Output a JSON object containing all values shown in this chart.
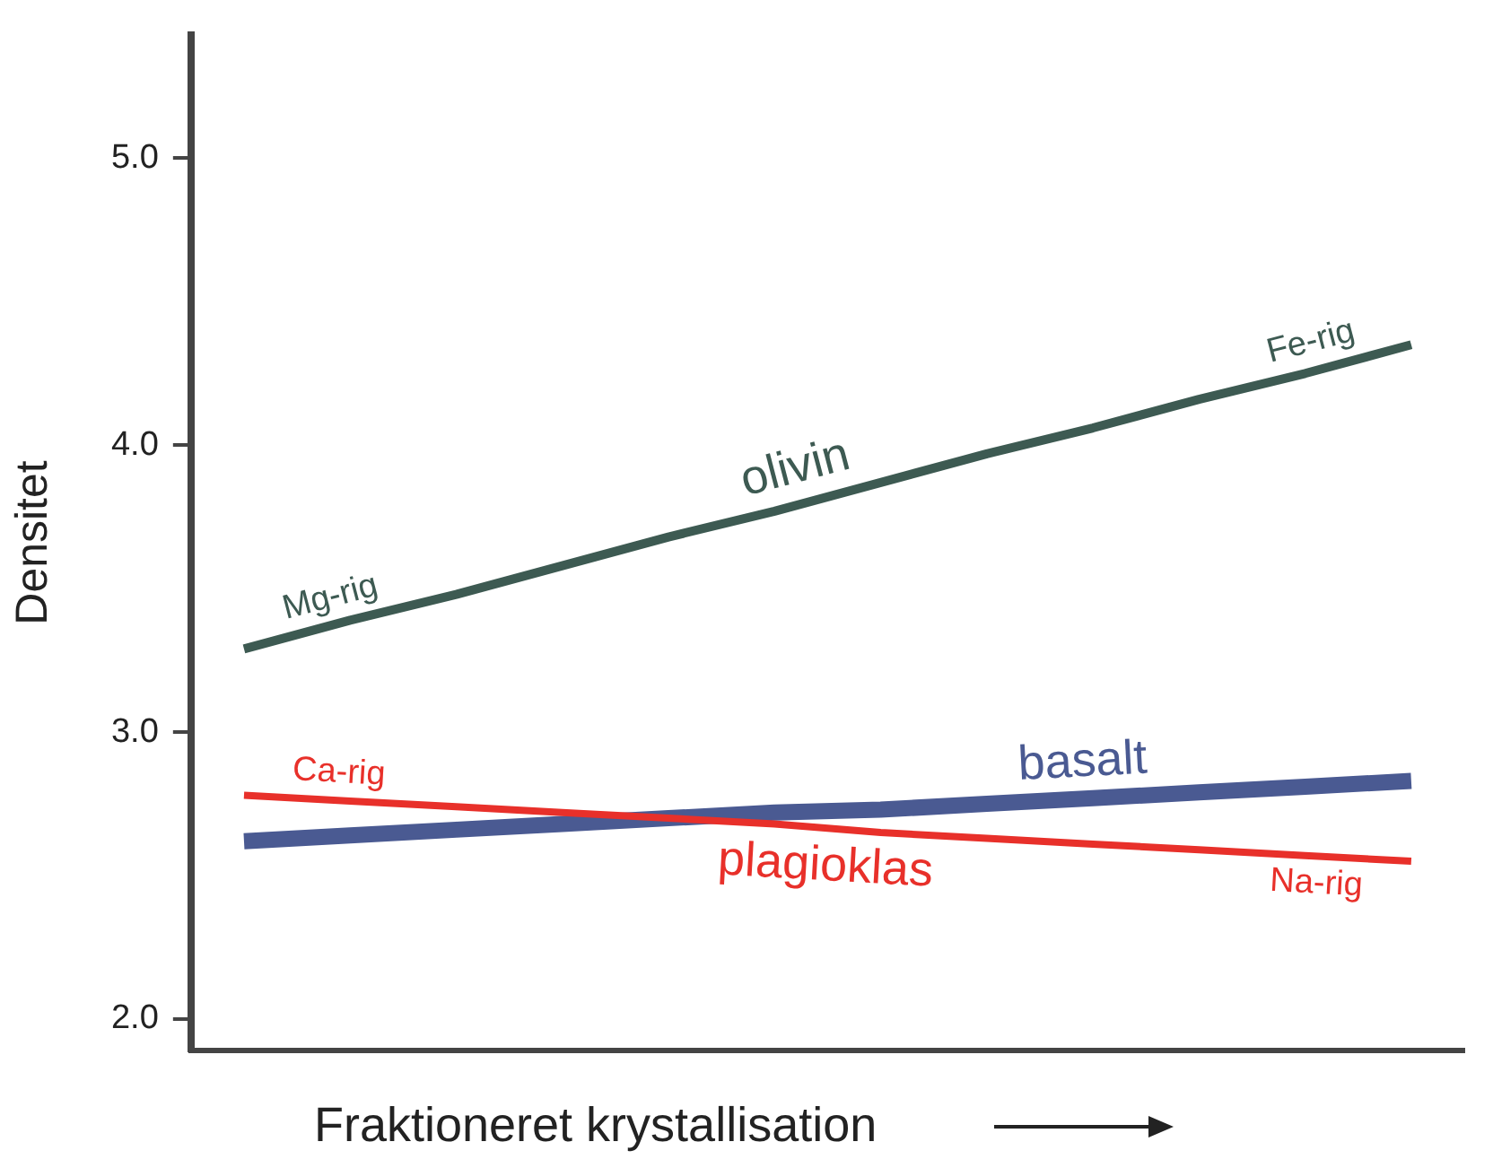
{
  "chart_data": {
    "type": "line",
    "xlabel": "Fraktioneret krystallisation",
    "ylabel": "Densitet",
    "categories": [
      null,
      null,
      null,
      null,
      null,
      null,
      null,
      null,
      null,
      null,
      null,
      null
    ],
    "series": [
      {
        "name": "olivin",
        "color": "#3d5a52",
        "values": [
          3.29,
          3.39,
          3.48,
          3.58,
          3.68,
          3.77,
          3.87,
          3.97,
          4.06,
          4.16,
          4.25,
          4.35
        ]
      },
      {
        "name": "basalt",
        "color": "#4a5a92",
        "values": [
          2.62,
          2.64,
          2.66,
          2.68,
          2.7,
          2.72,
          2.73,
          2.75,
          2.77,
          2.79,
          2.81,
          2.83
        ]
      },
      {
        "name": "plagioklas",
        "color": "#e8302a",
        "values": [
          2.78,
          2.76,
          2.74,
          2.72,
          2.7,
          2.68,
          2.65,
          2.63,
          2.61,
          2.59,
          2.57,
          2.55
        ]
      }
    ],
    "ylim": [
      1.89,
      5.43
    ],
    "yticks": [
      {
        "value": 2,
        "label": "2.0"
      },
      {
        "value": 3,
        "label": "3.0"
      },
      {
        "value": 4,
        "label": "4.0"
      },
      {
        "value": 5,
        "label": "5.0"
      }
    ],
    "annotations": [
      "Mg-rig",
      "Fe-rig",
      "Ca-rig",
      "Na-rig"
    ],
    "grid": false,
    "legend": false,
    "marker": "none",
    "line_style": "solid"
  }
}
